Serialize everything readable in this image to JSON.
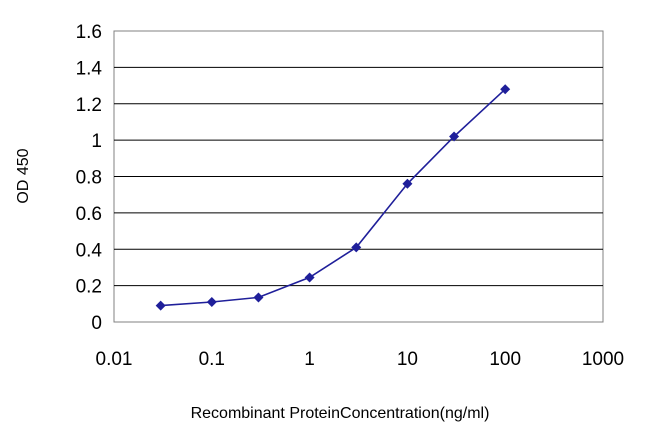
{
  "chart_data": {
    "type": "line",
    "title": "",
    "xlabel": "Recombinant ProteinConcentration(ng/ml)",
    "ylabel": "OD 450",
    "x_scale": "log",
    "xlim": [
      0.01,
      1000
    ],
    "ylim": [
      0,
      1.6
    ],
    "x_ticks": [
      "0.01",
      "0.1",
      "1",
      "10",
      "100",
      "1000"
    ],
    "y_ticks": [
      "0",
      "0.2",
      "0.4",
      "0.6",
      "0.8",
      "1",
      "1.2",
      "1.4",
      "1.6"
    ],
    "grid": "horizontal",
    "legend": "none",
    "plot_background": "#ffffff",
    "grid_color": "#000000",
    "series": [
      {
        "x": [
          0.03,
          0.1,
          0.3,
          1,
          3,
          10,
          30,
          100
        ],
        "y": [
          0.09,
          0.11,
          0.135,
          0.245,
          0.41,
          0.76,
          1.02,
          1.28
        ],
        "color": "#1f1f9a",
        "marker": "diamond"
      }
    ]
  }
}
